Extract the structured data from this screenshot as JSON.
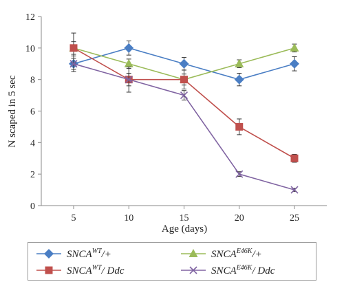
{
  "chart_data": {
    "type": "line",
    "ylabel": "N scaped in 5 sec",
    "xlabel": "Age (days)",
    "x": [
      5,
      10,
      15,
      20,
      25
    ],
    "ylim": [
      0,
      12
    ],
    "yticks": [
      0,
      2,
      4,
      6,
      8,
      10,
      12
    ],
    "grid": false,
    "legend_position": "bottom",
    "series": [
      {
        "name": "SNCA^WT/+",
        "legend_main": "SNCA",
        "legend_sup": "WT",
        "legend_tail": "/+",
        "color": "#4a7ec4",
        "marker": "diamond",
        "values": [
          9.0,
          10.0,
          9.0,
          8.0,
          9.0
        ],
        "errors": [
          0.5,
          0.45,
          0.4,
          0.4,
          0.45
        ]
      },
      {
        "name": "SNCA^E46K/+",
        "legend_main": "SNCA",
        "legend_sup": "E46K",
        "legend_tail": "/+",
        "color": "#9bbb59",
        "marker": "triangle",
        "values": [
          10.0,
          9.0,
          8.0,
          9.0,
          10.0
        ],
        "errors": [
          0.4,
          0.3,
          0.35,
          0.25,
          0.25
        ]
      },
      {
        "name": "SNCA^WT/ Ddc",
        "legend_main": "SNCA",
        "legend_sup": "WT",
        "legend_tail": "/ Ddc",
        "color": "#c0504d",
        "marker": "square",
        "values": [
          10.0,
          8.0,
          8.0,
          5.0,
          3.0
        ],
        "errors": [
          0.95,
          0.8,
          0.6,
          0.5,
          0.25
        ]
      },
      {
        "name": "SNCA^E46K/ Ddc",
        "legend_main": "SNCA",
        "legend_sup": "E46K",
        "legend_tail": "/ Ddc",
        "color": "#8064a2",
        "marker": "x",
        "values": [
          9.0,
          8.0,
          7.0,
          2.0,
          1.0
        ],
        "errors": [
          0.35,
          0.4,
          0.3,
          0.15,
          0.1
        ]
      }
    ]
  }
}
